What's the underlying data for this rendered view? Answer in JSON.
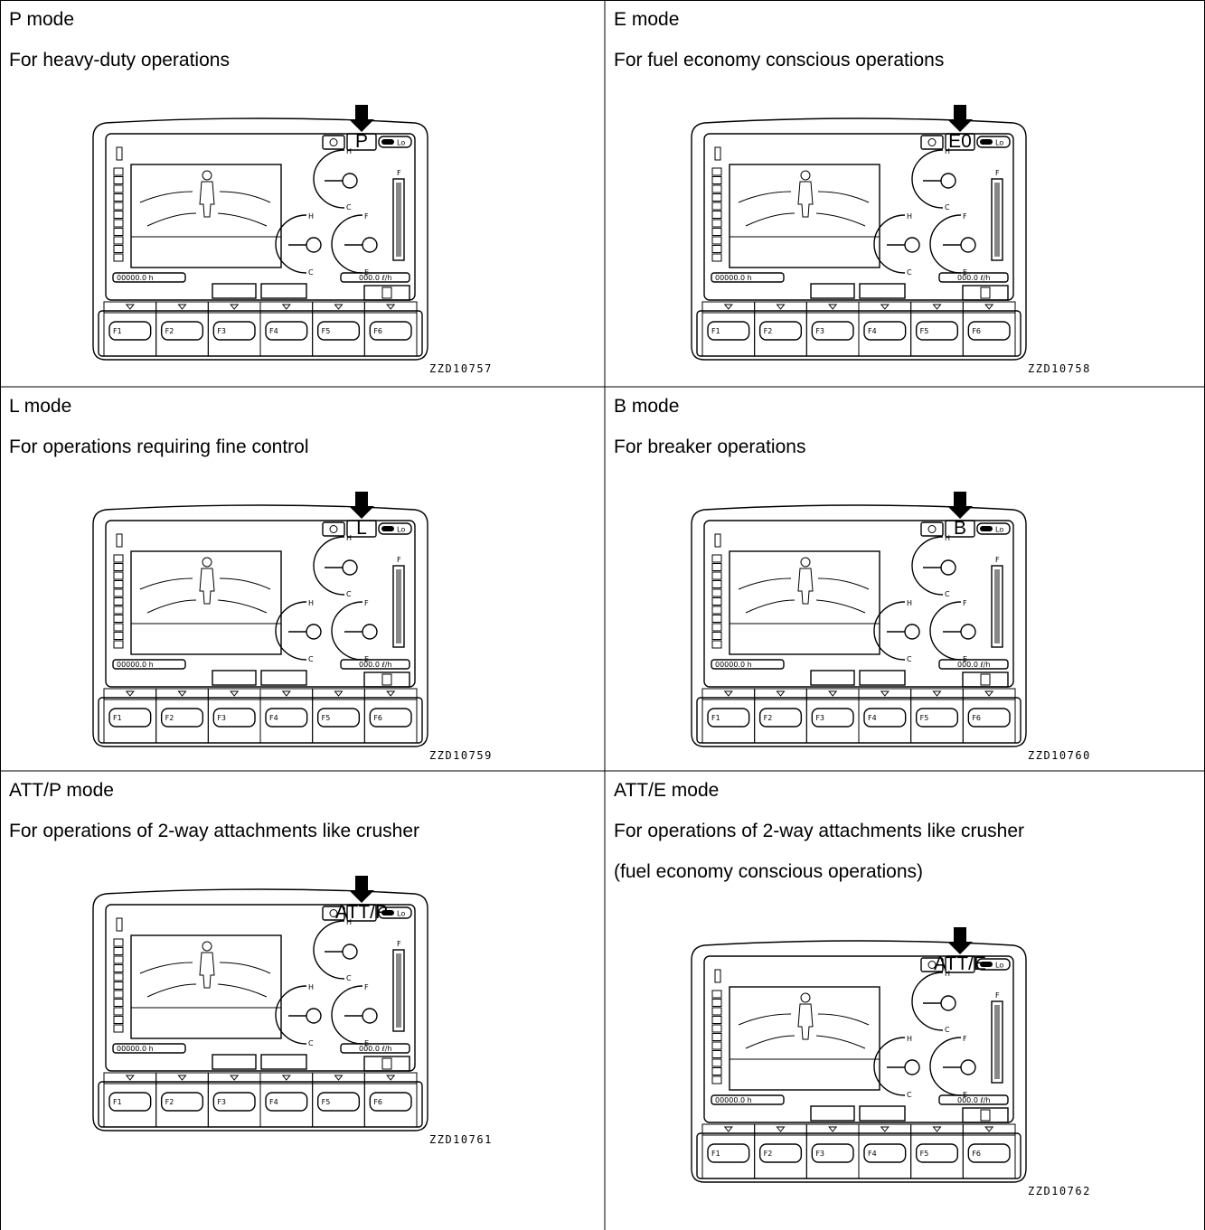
{
  "cells": [
    {
      "mode": "P mode",
      "description": [
        "For heavy-duty operations"
      ],
      "indicator": "P",
      "figure": "ZZD10757"
    },
    {
      "mode": "E mode",
      "description": [
        "For fuel economy conscious operations"
      ],
      "indicator": "E0",
      "figure": "ZZD10758"
    },
    {
      "mode": "L mode",
      "description": [
        "For operations requiring fine control"
      ],
      "indicator": "L",
      "figure": "ZZD10759"
    },
    {
      "mode": "B mode",
      "description": [
        "For breaker operations"
      ],
      "indicator": "B",
      "figure": "ZZD10760"
    },
    {
      "mode": "ATT/P mode",
      "description": [
        "For operations of 2-way attachments like crusher"
      ],
      "indicator": "ATT/P",
      "figure": "ZZD10761"
    },
    {
      "mode": "ATT/E mode",
      "description": [
        "For operations of 2-way attachments like crusher",
        "(fuel economy conscious operations)"
      ],
      "indicator": "ATT/E",
      "figure": "ZZD10762"
    }
  ],
  "monitor": {
    "keys": [
      "F1",
      "F2",
      "F3",
      "F4",
      "F5",
      "F6"
    ],
    "hour_meter": "00000.0 h",
    "fuel_rate": "000.0 ℓ/h",
    "power_label": "Lo",
    "gauge_hot": "H",
    "gauge_cold": "C",
    "fuel_full": "F",
    "fuel_empty": "E"
  }
}
